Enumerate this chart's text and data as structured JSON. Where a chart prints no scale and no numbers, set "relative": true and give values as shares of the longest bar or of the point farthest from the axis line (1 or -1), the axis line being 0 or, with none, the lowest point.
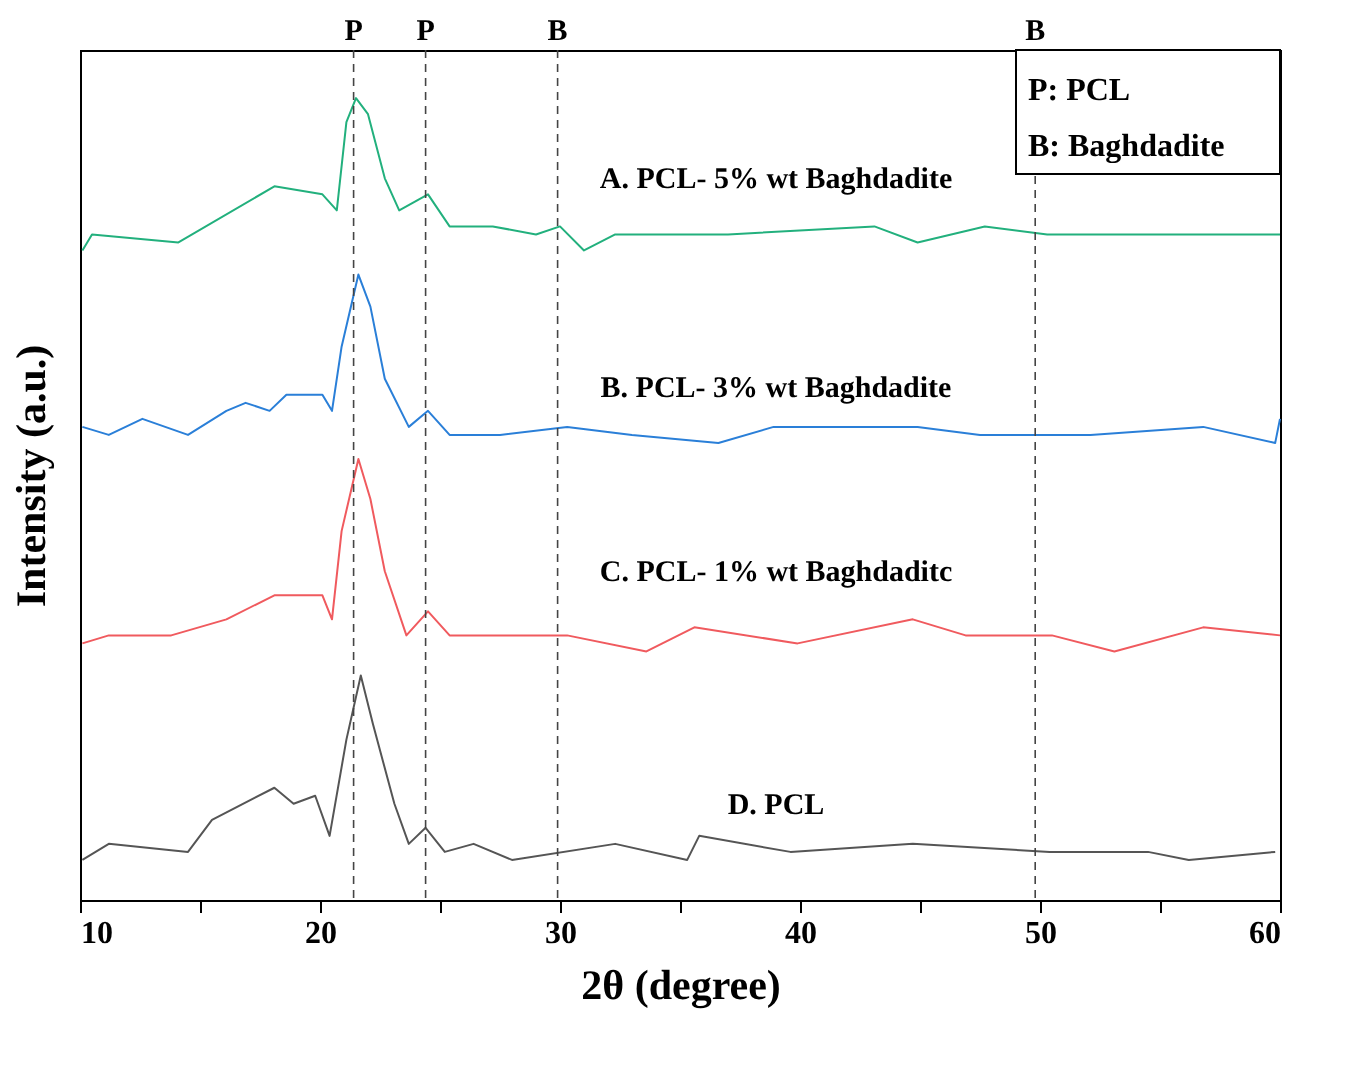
{
  "chart_data": {
    "type": "line",
    "relative": true,
    "xlabel": "2θ (degree)",
    "ylabel": "Intensity (a.u.)",
    "xlim": [
      10,
      60
    ],
    "xticks": [
      10,
      {
        "value": 15,
        "label": null
      },
      20,
      {
        "value": 25,
        "label": null
      },
      30,
      {
        "value": 35,
        "label": null
      },
      40,
      {
        "value": 45,
        "label": null
      },
      50,
      {
        "value": 55,
        "label": null
      },
      60
    ],
    "tick_labels": "x",
    "grid": false,
    "legend": false,
    "line_style": "solid",
    "marker": "none",
    "series": [
      {
        "name": "A. PCL- 5% wt Baghdadite",
        "color": "#22b07d",
        "x": [
          10.1,
          10.5,
          14.1,
          18.1,
          20.1,
          20.7,
          21.1,
          21.5,
          22.0,
          22.7,
          23.3,
          23.9,
          24.5,
          25.4,
          27.2,
          29.0,
          30.0,
          31.0,
          32.3,
          37,
          43.1,
          44.9,
          47.7,
          50.3,
          55.8,
          60
        ],
        "values": [
          0.81,
          0.83,
          0.82,
          0.89,
          0.88,
          0.86,
          0.97,
          1.0,
          0.98,
          0.9,
          0.86,
          0.87,
          0.88,
          0.84,
          0.84,
          0.83,
          0.84,
          0.81,
          0.83,
          0.83,
          0.84,
          0.82,
          0.84,
          0.83,
          0.83,
          0.83
        ]
      },
      {
        "name": "B. PCL- 3% wt Baghdadite",
        "color": "#2a7fd8",
        "x": [
          10.1,
          11.2,
          12.6,
          14.5,
          16.1,
          16.9,
          17.9,
          18.6,
          20.1,
          20.5,
          20.9,
          21.6,
          22.1,
          22.7,
          23.7,
          24.5,
          25.4,
          27.5,
          30.3,
          33.0,
          36.6,
          38.9,
          44.9,
          47.5,
          52.1,
          56.8,
          59.8,
          60
        ],
        "values": [
          0.59,
          0.58,
          0.6,
          0.58,
          0.61,
          0.62,
          0.61,
          0.63,
          0.63,
          0.61,
          0.69,
          0.78,
          0.74,
          0.65,
          0.59,
          0.61,
          0.58,
          0.58,
          0.59,
          0.58,
          0.57,
          0.59,
          0.59,
          0.58,
          0.58,
          0.59,
          0.57,
          0.6
        ]
      },
      {
        "name": "C. PCL- 1% wt Baghdaditc",
        "color": "#f05a5e",
        "x": [
          10.1,
          11.2,
          13.8,
          16.1,
          18.1,
          20.1,
          20.5,
          20.9,
          21.6,
          22.1,
          22.7,
          23.6,
          24.5,
          25.4,
          27.5,
          30.3,
          33.6,
          35.6,
          39.9,
          44.7,
          46.9,
          50.5,
          53.1,
          56.8,
          60
        ],
        "values": [
          0.32,
          0.33,
          0.33,
          0.35,
          0.38,
          0.38,
          0.35,
          0.46,
          0.55,
          0.5,
          0.41,
          0.33,
          0.36,
          0.33,
          0.33,
          0.33,
          0.31,
          0.34,
          0.32,
          0.35,
          0.33,
          0.33,
          0.31,
          0.34,
          0.33
        ]
      },
      {
        "name": "D. PCL",
        "color": "#555555",
        "x": [
          10.1,
          11.2,
          14.5,
          15.5,
          18.1,
          18.9,
          19.8,
          20.4,
          21.1,
          21.7,
          22.2,
          23.1,
          23.7,
          24.4,
          25.2,
          26.4,
          28.0,
          32.3,
          35.3,
          35.8,
          39.6,
          44.7,
          50.4,
          54.5,
          56.2,
          59.8
        ],
        "values": [
          0.05,
          0.07,
          0.06,
          0.1,
          0.14,
          0.12,
          0.13,
          0.08,
          0.2,
          0.28,
          0.22,
          0.12,
          0.07,
          0.09,
          0.06,
          0.07,
          0.05,
          0.07,
          0.05,
          0.08,
          0.06,
          0.07,
          0.06,
          0.06,
          0.05,
          0.06
        ]
      }
    ],
    "ref_lines": [
      {
        "axis": "x",
        "value": 21.4,
        "label": "P",
        "color": "#444444",
        "line_style": "dashed"
      },
      {
        "axis": "x",
        "value": 24.4,
        "label": "P",
        "color": "#444444",
        "line_style": "dashed"
      },
      {
        "axis": "x",
        "value": 29.9,
        "label": "B",
        "color": "#444444",
        "line_style": "dashed"
      },
      {
        "axis": "x",
        "value": 49.8,
        "label": "B",
        "color": "#444444",
        "line_style": "dashed"
      }
    ],
    "annotations": [
      "P: PCL",
      "B: Baghdadite"
    ]
  }
}
